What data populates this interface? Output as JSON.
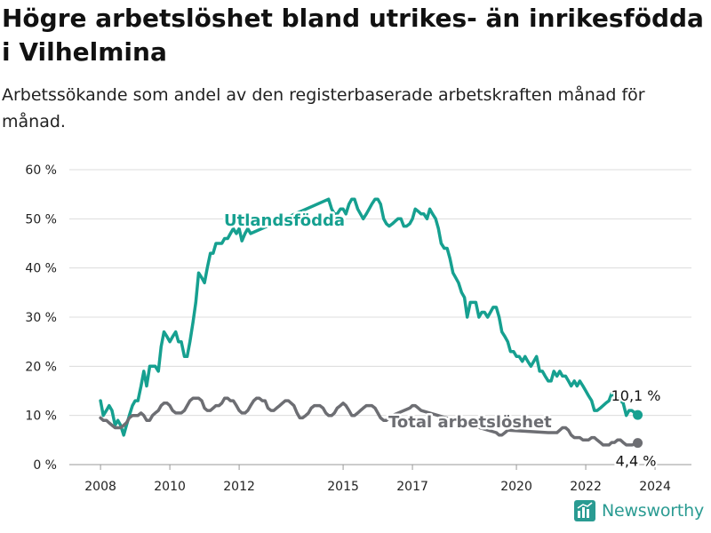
{
  "header": {
    "title": "Högre arbetslöshet bland utrikes- än inrikesfödda i Vilhelmina",
    "subtitle": "Arbetssökande som andel av den registerbaserade arbetskraften månad för månad."
  },
  "brand": {
    "name": "Newsworthy",
    "icon": "newsworthy-logo-icon"
  },
  "colors": {
    "utlandsfodda": "#16a090",
    "total": "#6d6e73",
    "grid": "#dcdcdc",
    "text": "#222222",
    "brand": "#2a9b92"
  },
  "chart_data": {
    "type": "line",
    "grid": true,
    "y_tick_labels": [
      "0 %",
      "10 %",
      "20 %",
      "30 %",
      "40 %",
      "50 %",
      "60 %"
    ],
    "y_ticks": [
      0,
      10,
      20,
      30,
      40,
      50,
      60
    ],
    "x_tick_labels": [
      "2008",
      "2010",
      "2012",
      "2015",
      "2017",
      "2020",
      "2022",
      "2024"
    ],
    "x_ticks": [
      2008,
      2010,
      2012,
      2015,
      2017,
      2020,
      2022,
      2024
    ],
    "xlim": [
      2007.1,
      2025.05
    ],
    "ylim": [
      0,
      60
    ],
    "series": [
      {
        "name": "Utlandsfödda",
        "end_label": "10,1 %",
        "points": [
          [
            2008.0,
            13
          ],
          [
            2008.08,
            10
          ],
          [
            2008.17,
            11
          ],
          [
            2008.25,
            12
          ],
          [
            2008.33,
            11
          ],
          [
            2008.42,
            8
          ],
          [
            2008.5,
            9
          ],
          [
            2008.58,
            8
          ],
          [
            2008.67,
            6
          ],
          [
            2008.75,
            8
          ],
          [
            2008.83,
            10
          ],
          [
            2008.92,
            12
          ],
          [
            2009.0,
            13
          ],
          [
            2009.08,
            13
          ],
          [
            2009.17,
            16
          ],
          [
            2009.25,
            19
          ],
          [
            2009.33,
            16
          ],
          [
            2009.42,
            20
          ],
          [
            2009.5,
            20
          ],
          [
            2009.58,
            20
          ],
          [
            2009.67,
            19
          ],
          [
            2009.75,
            24
          ],
          [
            2009.83,
            27
          ],
          [
            2009.92,
            26
          ],
          [
            2010.0,
            25
          ],
          [
            2010.08,
            26
          ],
          [
            2010.17,
            27
          ],
          [
            2010.25,
            25
          ],
          [
            2010.33,
            25
          ],
          [
            2010.42,
            22
          ],
          [
            2010.5,
            22
          ],
          [
            2010.58,
            25
          ],
          [
            2010.67,
            29
          ],
          [
            2010.75,
            33
          ],
          [
            2010.83,
            39
          ],
          [
            2010.92,
            38
          ],
          [
            2011.0,
            37
          ],
          [
            2011.08,
            40
          ],
          [
            2011.17,
            43
          ],
          [
            2011.25,
            43
          ],
          [
            2011.33,
            45
          ],
          [
            2011.42,
            45
          ],
          [
            2011.5,
            45
          ],
          [
            2011.58,
            46
          ],
          [
            2011.67,
            46
          ],
          [
            2011.75,
            47
          ],
          [
            2011.83,
            48
          ],
          [
            2011.92,
            47
          ],
          [
            2012.0,
            48
          ],
          [
            2012.08,
            45.5
          ],
          [
            2012.17,
            47
          ],
          [
            2012.25,
            48
          ],
          [
            2012.33,
            47
          ],
          [
            2014.58,
            54
          ],
          [
            2014.67,
            52
          ],
          [
            2014.75,
            51
          ],
          [
            2014.83,
            51
          ],
          [
            2014.92,
            52
          ],
          [
            2015.0,
            52
          ],
          [
            2015.08,
            51
          ],
          [
            2015.17,
            53
          ],
          [
            2015.25,
            54
          ],
          [
            2015.33,
            54
          ],
          [
            2015.42,
            52
          ],
          [
            2015.5,
            51
          ],
          [
            2015.58,
            50
          ],
          [
            2015.67,
            51
          ],
          [
            2015.75,
            52
          ],
          [
            2015.83,
            53
          ],
          [
            2015.92,
            54
          ],
          [
            2016.0,
            54
          ],
          [
            2016.08,
            53
          ],
          [
            2016.17,
            50
          ],
          [
            2016.25,
            49
          ],
          [
            2016.33,
            48.5
          ],
          [
            2016.42,
            49
          ],
          [
            2016.5,
            49.5
          ],
          [
            2016.58,
            50
          ],
          [
            2016.67,
            50
          ],
          [
            2016.75,
            48.5
          ],
          [
            2016.83,
            48.5
          ],
          [
            2016.92,
            49
          ],
          [
            2017.0,
            50
          ],
          [
            2017.08,
            52
          ],
          [
            2017.17,
            51.5
          ],
          [
            2017.25,
            51
          ],
          [
            2017.33,
            51
          ],
          [
            2017.42,
            50
          ],
          [
            2017.5,
            52
          ],
          [
            2017.58,
            51
          ],
          [
            2017.67,
            50
          ],
          [
            2017.75,
            48
          ],
          [
            2017.83,
            45
          ],
          [
            2017.92,
            44
          ],
          [
            2018.0,
            44
          ],
          [
            2018.08,
            42
          ],
          [
            2018.17,
            39
          ],
          [
            2018.25,
            38
          ],
          [
            2018.33,
            37
          ],
          [
            2018.42,
            35
          ],
          [
            2018.5,
            34
          ],
          [
            2018.58,
            30
          ],
          [
            2018.67,
            33
          ],
          [
            2018.75,
            33
          ],
          [
            2018.83,
            33
          ],
          [
            2018.92,
            30
          ],
          [
            2019.0,
            31
          ],
          [
            2019.08,
            31
          ],
          [
            2019.17,
            30
          ],
          [
            2019.25,
            31
          ],
          [
            2019.33,
            32
          ],
          [
            2019.42,
            32
          ],
          [
            2019.5,
            30
          ],
          [
            2019.58,
            27
          ],
          [
            2019.67,
            26
          ],
          [
            2019.75,
            25
          ],
          [
            2019.83,
            23
          ],
          [
            2019.92,
            23
          ],
          [
            2020.0,
            22
          ],
          [
            2020.08,
            22
          ],
          [
            2020.17,
            21
          ],
          [
            2020.25,
            22
          ],
          [
            2020.33,
            21
          ],
          [
            2020.42,
            20
          ],
          [
            2020.5,
            21
          ],
          [
            2020.58,
            22
          ],
          [
            2020.67,
            19
          ],
          [
            2020.75,
            19
          ],
          [
            2020.83,
            18
          ],
          [
            2020.92,
            17
          ],
          [
            2021.0,
            17
          ],
          [
            2021.08,
            19
          ],
          [
            2021.17,
            18
          ],
          [
            2021.25,
            19
          ],
          [
            2021.33,
            18
          ],
          [
            2021.42,
            18
          ],
          [
            2021.5,
            17
          ],
          [
            2021.58,
            16
          ],
          [
            2021.67,
            17
          ],
          [
            2021.75,
            16
          ],
          [
            2021.83,
            17
          ],
          [
            2021.92,
            16
          ],
          [
            2022.0,
            15
          ],
          [
            2022.08,
            14
          ],
          [
            2022.17,
            13
          ],
          [
            2022.25,
            11
          ],
          [
            2022.33,
            11
          ],
          [
            2022.42,
            11.5
          ],
          [
            2022.5,
            12
          ],
          [
            2022.58,
            12.5
          ],
          [
            2022.67,
            13
          ],
          [
            2022.75,
            14.5
          ],
          [
            2023.08,
            12.5
          ],
          [
            2023.17,
            10
          ],
          [
            2023.25,
            11
          ],
          [
            2023.33,
            11
          ],
          [
            2023.42,
            10.5
          ],
          [
            2023.5,
            10.1
          ]
        ]
      },
      {
        "name": "Total arbetslöshet",
        "end_label": "4,4 %",
        "points": [
          [
            2008.0,
            9.5
          ],
          [
            2008.08,
            9
          ],
          [
            2008.17,
            9
          ],
          [
            2008.25,
            8.5
          ],
          [
            2008.33,
            8
          ],
          [
            2008.42,
            7.5
          ],
          [
            2008.5,
            7.5
          ],
          [
            2008.58,
            7.5
          ],
          [
            2008.67,
            8
          ],
          [
            2008.75,
            8.5
          ],
          [
            2008.83,
            9.5
          ],
          [
            2008.92,
            10
          ],
          [
            2009.0,
            10
          ],
          [
            2009.08,
            10
          ],
          [
            2009.17,
            10.5
          ],
          [
            2009.25,
            10
          ],
          [
            2009.33,
            9
          ],
          [
            2009.42,
            9
          ],
          [
            2009.5,
            10
          ],
          [
            2009.58,
            10.5
          ],
          [
            2009.67,
            11
          ],
          [
            2009.75,
            12
          ],
          [
            2009.83,
            12.5
          ],
          [
            2009.92,
            12.5
          ],
          [
            2010.0,
            12
          ],
          [
            2010.08,
            11
          ],
          [
            2010.17,
            10.5
          ],
          [
            2010.25,
            10.5
          ],
          [
            2010.33,
            10.5
          ],
          [
            2010.42,
            11
          ],
          [
            2010.5,
            12
          ],
          [
            2010.58,
            13
          ],
          [
            2010.67,
            13.5
          ],
          [
            2010.75,
            13.5
          ],
          [
            2010.83,
            13.5
          ],
          [
            2010.92,
            13
          ],
          [
            2011.0,
            11.5
          ],
          [
            2011.08,
            11
          ],
          [
            2011.17,
            11
          ],
          [
            2011.25,
            11.5
          ],
          [
            2011.33,
            12
          ],
          [
            2011.42,
            12
          ],
          [
            2011.5,
            12.5
          ],
          [
            2011.58,
            13.5
          ],
          [
            2011.67,
            13.5
          ],
          [
            2011.75,
            13
          ],
          [
            2011.83,
            13
          ],
          [
            2011.92,
            12
          ],
          [
            2012.0,
            11
          ],
          [
            2012.08,
            10.5
          ],
          [
            2012.17,
            10.5
          ],
          [
            2012.25,
            11
          ],
          [
            2012.33,
            12
          ],
          [
            2012.42,
            13
          ],
          [
            2012.5,
            13.5
          ],
          [
            2012.58,
            13.5
          ],
          [
            2012.67,
            13
          ],
          [
            2012.75,
            13
          ],
          [
            2012.83,
            11.5
          ],
          [
            2012.92,
            11
          ],
          [
            2013.0,
            11
          ],
          [
            2013.08,
            11.5
          ],
          [
            2013.17,
            12
          ],
          [
            2013.25,
            12.5
          ],
          [
            2013.33,
            13
          ],
          [
            2013.42,
            13
          ],
          [
            2013.5,
            12.5
          ],
          [
            2013.58,
            12
          ],
          [
            2013.67,
            10.5
          ],
          [
            2013.75,
            9.5
          ],
          [
            2013.83,
            9.5
          ],
          [
            2013.92,
            10
          ],
          [
            2014.0,
            10.5
          ],
          [
            2014.08,
            11.5
          ],
          [
            2014.17,
            12
          ],
          [
            2014.25,
            12
          ],
          [
            2014.33,
            12
          ],
          [
            2014.42,
            11.5
          ],
          [
            2014.5,
            10.5
          ],
          [
            2014.58,
            10
          ],
          [
            2014.67,
            10
          ],
          [
            2014.75,
            10.5
          ],
          [
            2014.83,
            11.5
          ],
          [
            2014.92,
            12
          ],
          [
            2015.0,
            12.5
          ],
          [
            2015.08,
            12
          ],
          [
            2015.17,
            11
          ],
          [
            2015.25,
            10
          ],
          [
            2015.33,
            10
          ],
          [
            2015.42,
            10.5
          ],
          [
            2015.5,
            11
          ],
          [
            2015.58,
            11.5
          ],
          [
            2015.67,
            12
          ],
          [
            2015.75,
            12
          ],
          [
            2015.83,
            12
          ],
          [
            2015.92,
            11.5
          ],
          [
            2016.0,
            10.5
          ],
          [
            2016.08,
            9.5
          ],
          [
            2016.17,
            9
          ],
          [
            2016.25,
            9
          ],
          [
            2016.33,
            9.5
          ],
          [
            2016.42,
            10
          ],
          [
            2016.92,
            11.5
          ],
          [
            2017.0,
            12
          ],
          [
            2017.08,
            12
          ],
          [
            2017.17,
            11.5
          ],
          [
            2017.25,
            11
          ],
          [
            2019.42,
            6.5
          ],
          [
            2019.5,
            6
          ],
          [
            2019.58,
            6
          ],
          [
            2019.67,
            6.5
          ],
          [
            2019.75,
            7
          ],
          [
            2020.92,
            6.5
          ],
          [
            2021.0,
            6.5
          ],
          [
            2021.08,
            6.5
          ],
          [
            2021.17,
            6.5
          ],
          [
            2021.25,
            7
          ],
          [
            2021.33,
            7.5
          ],
          [
            2021.42,
            7.5
          ],
          [
            2021.5,
            7
          ],
          [
            2021.58,
            6
          ],
          [
            2021.67,
            5.5
          ],
          [
            2021.75,
            5.5
          ],
          [
            2021.83,
            5.5
          ],
          [
            2021.92,
            5
          ],
          [
            2022.0,
            5
          ],
          [
            2022.08,
            5
          ],
          [
            2022.17,
            5.5
          ],
          [
            2022.25,
            5.5
          ],
          [
            2022.33,
            5
          ],
          [
            2022.42,
            4.5
          ],
          [
            2022.5,
            4
          ],
          [
            2022.58,
            4
          ],
          [
            2022.67,
            4
          ],
          [
            2022.75,
            4.5
          ],
          [
            2022.83,
            4.5
          ],
          [
            2022.92,
            5
          ],
          [
            2023.0,
            5
          ],
          [
            2023.08,
            4.5
          ],
          [
            2023.17,
            4
          ],
          [
            2023.25,
            4
          ],
          [
            2023.33,
            4
          ],
          [
            2023.42,
            4.2
          ],
          [
            2023.5,
            4.4
          ]
        ]
      }
    ]
  }
}
